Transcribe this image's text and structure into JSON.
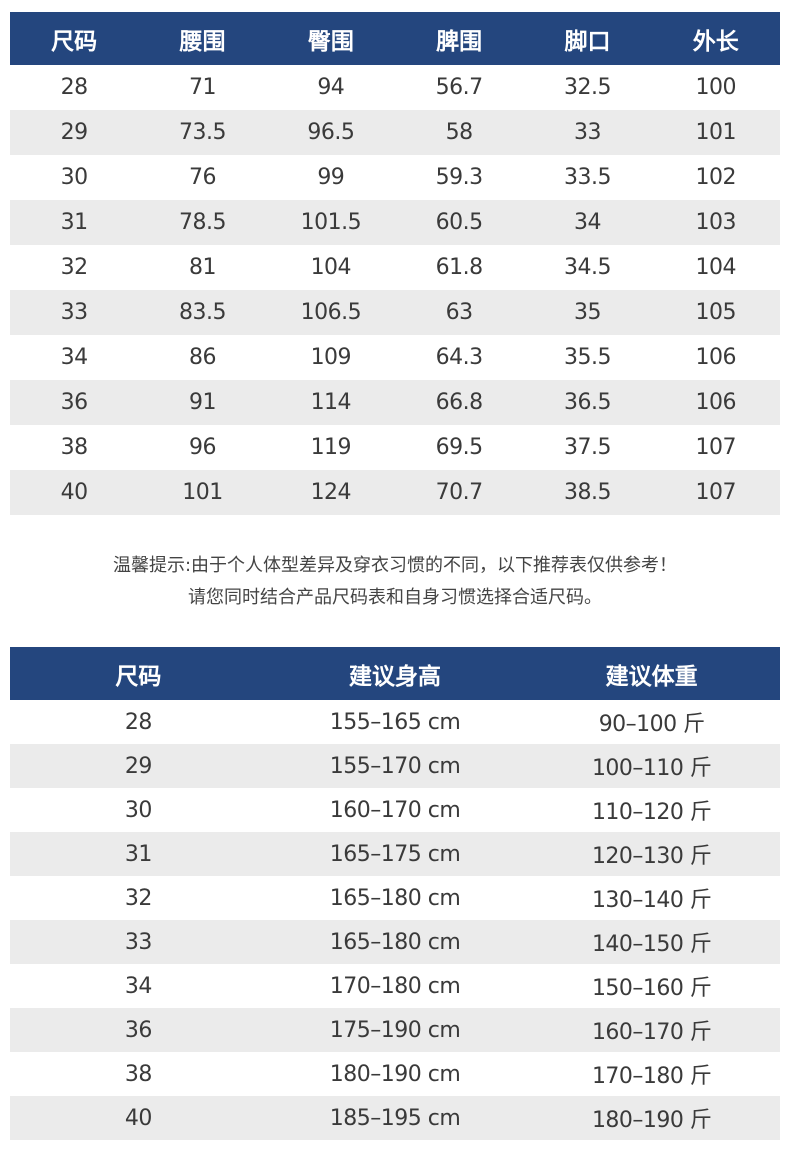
{
  "size_table": {
    "headers": [
      "尺码",
      "腰围",
      "臀围",
      "脾围",
      "脚口",
      "外长"
    ],
    "rows": [
      [
        "28",
        "71",
        "94",
        "56.7",
        "32.5",
        "100"
      ],
      [
        "29",
        "73.5",
        "96.5",
        "58",
        "33",
        "101"
      ],
      [
        "30",
        "76",
        "99",
        "59.3",
        "33.5",
        "102"
      ],
      [
        "31",
        "78.5",
        "101.5",
        "60.5",
        "34",
        "103"
      ],
      [
        "32",
        "81",
        "104",
        "61.8",
        "34.5",
        "104"
      ],
      [
        "33",
        "83.5",
        "106.5",
        "63",
        "35",
        "105"
      ],
      [
        "34",
        "86",
        "109",
        "64.3",
        "35.5",
        "106"
      ],
      [
        "36",
        "91",
        "114",
        "66.8",
        "36.5",
        "106"
      ],
      [
        "38",
        "96",
        "119",
        "69.5",
        "37.5",
        "107"
      ],
      [
        "40",
        "101",
        "124",
        "70.7",
        "38.5",
        "107"
      ]
    ]
  },
  "note": {
    "line1": "温馨提示:由于个人体型差异及穿衣习惯的不同，以下推荐表仅供参考！",
    "line2": "请您同时结合产品尺码表和自身习惯选择合适尺码。"
  },
  "recommend_table": {
    "headers": [
      "尺码",
      "建议身高",
      "建议体重"
    ],
    "rows": [
      [
        "28",
        "155–165 cm",
        "90–100 斤"
      ],
      [
        "29",
        "155–170 cm",
        "100–110 斤"
      ],
      [
        "30",
        "160–170 cm",
        "110–120 斤"
      ],
      [
        "31",
        "165–175 cm",
        "120–130 斤"
      ],
      [
        "32",
        "165–180 cm",
        "130–140 斤"
      ],
      [
        "33",
        "165–180 cm",
        "140–150 斤"
      ],
      [
        "34",
        "170–180 cm",
        "150–160 斤"
      ],
      [
        "36",
        "175–190 cm",
        "160–170 斤"
      ],
      [
        "38",
        "180–190 cm",
        "170–180 斤"
      ],
      [
        "40",
        "185–195 cm",
        "180–190 斤"
      ]
    ]
  },
  "colors": {
    "header": "#24467e",
    "stripe": "#ebebeb"
  }
}
